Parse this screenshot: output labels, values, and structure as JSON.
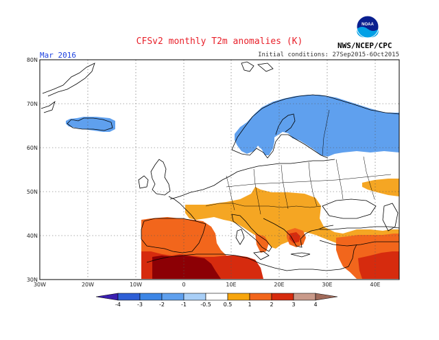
{
  "title": "CFSv2 monthly T2m anomalies (K)",
  "month_label": "Mar 2016",
  "initial_conditions": "Initial conditions: 27Sep2015-6Oct2015",
  "agency": "NWS/NCEP/CPC",
  "logo_text": "NOAA",
  "longitude_labels": [
    "30W",
    "20W",
    "10W",
    "0",
    "10E",
    "20E",
    "30E",
    "40E"
  ],
  "latitude_labels": [
    "30N",
    "40N",
    "50N",
    "60N",
    "70N",
    "80N"
  ],
  "colorbar": {
    "labels": [
      "-4",
      "-3",
      "-2",
      "-1",
      "-0.5",
      "0.5",
      "1",
      "2",
      "3",
      "4"
    ],
    "colors": [
      "#3a1fb0",
      "#2e5fd6",
      "#3d86e6",
      "#7fb6f2",
      "#ffffff",
      "#f7a50d",
      "#f2661c",
      "#d62b0e",
      "#8c0005",
      "#c99a8a",
      "#a06a5a"
    ]
  },
  "colors": {
    "ocean": "#ffffff",
    "cold_strong": "#3d86e6",
    "cold": "#5fa0ee",
    "warm_weak": "#f5a623",
    "warm": "#f2661c",
    "warm_strong": "#d62b0e",
    "warm_extreme": "#8c0005"
  }
}
